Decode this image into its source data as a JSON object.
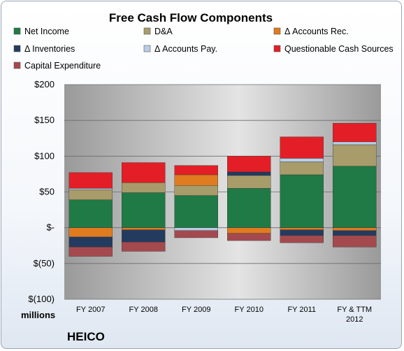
{
  "chart_data": {
    "type": "bar",
    "stacked": true,
    "title": "Free Cash Flow Components",
    "unit_label": "millions",
    "company": "HEICO",
    "categories": [
      "FY 2007",
      "FY 2008",
      "FY 2009",
      "FY 2010",
      "FY 2011",
      "FY & TTM 2012"
    ],
    "ylim": [
      -100,
      200
    ],
    "yticks": [
      200,
      150,
      100,
      50,
      0,
      -50,
      -100
    ],
    "ytick_labels": [
      "$200",
      "$150",
      "$100",
      "$50",
      "$-",
      "$(50)",
      "$(100)"
    ],
    "grid": true,
    "legend_position": "top",
    "series": [
      {
        "name": "Net Income",
        "color": "#1f7a45",
        "values": [
          39,
          49,
          45,
          55,
          74,
          86
        ]
      },
      {
        "name": "D&A",
        "color": "#a89c6a",
        "values": [
          14,
          14,
          14,
          18,
          18,
          30
        ]
      },
      {
        "name": "Δ Accounts Rec.",
        "color": "#e07b20",
        "values": [
          -13,
          -3,
          15,
          -8,
          -3,
          -4
        ]
      },
      {
        "name": "Δ Inventories",
        "color": "#243b60",
        "values": [
          -14,
          -17,
          0,
          5,
          -8,
          -7
        ]
      },
      {
        "name": "Δ Accounts Pay.",
        "color": "#b9cde6",
        "values": [
          2,
          0,
          -4,
          0,
          5,
          4
        ]
      },
      {
        "name": "Questionable Cash Sources",
        "color": "#e41e26",
        "values": [
          22,
          28,
          13,
          22,
          30,
          26
        ]
      },
      {
        "name": "Capital Expenditure",
        "color": "#a44a4f",
        "values": [
          -13,
          -13,
          -10,
          -10,
          -10,
          -16
        ]
      }
    ]
  }
}
